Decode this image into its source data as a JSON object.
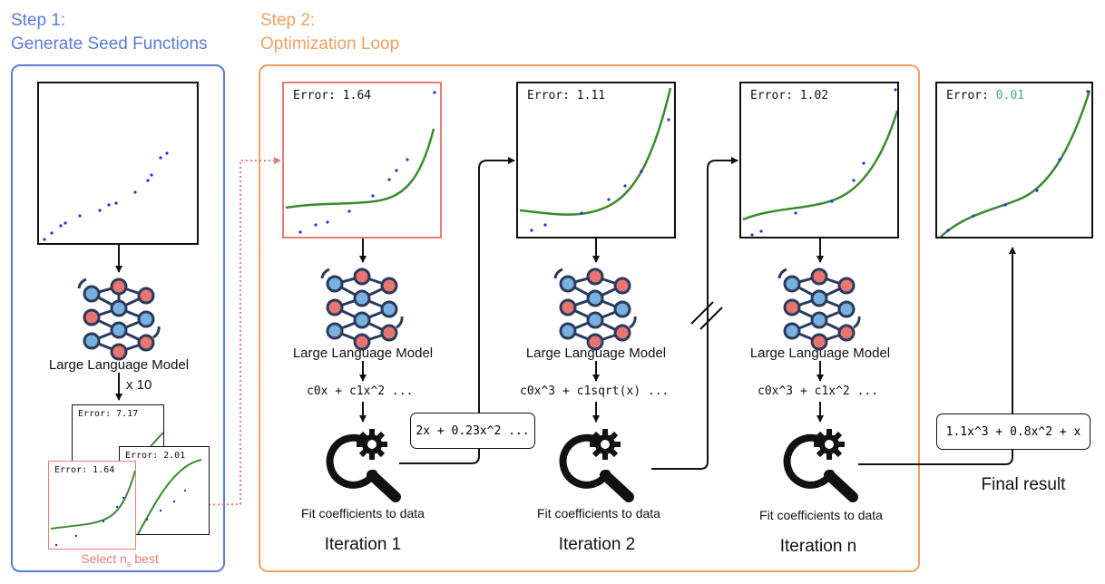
{
  "step1": {
    "title_line1": "Step 1:",
    "title_line2": "Generate Seed Functions",
    "color": "#5b7bdb"
  },
  "step2": {
    "title_line1": "Step 2:",
    "title_line2": "Optimization Loop",
    "color": "#f0a060"
  },
  "model_label": "Large Language Model",
  "times_label": "x 10",
  "select_label": "Select n",
  "select_sub": "s",
  "select_suffix": " best",
  "seed_plots": [
    {
      "error_label": "Error: 7.17"
    },
    {
      "error_label": "Error: 2.01"
    },
    {
      "error_label": "Error: 1.64"
    }
  ],
  "iterations": [
    {
      "error_label": "Error: 1.64",
      "function_text": "c0x + c1x^2 ...",
      "fit_label": "Fit coefficients to data",
      "iteration_label": "Iteration 1"
    },
    {
      "error_label": "Error: 1.11",
      "function_text": "c0x^3 + c1sqrt(x) ...",
      "fit_label": "Fit coefficients to data",
      "iteration_label": "Iteration 2"
    },
    {
      "error_label": "Error: 1.02",
      "function_text": "c0x^3 + c1x^2 ...",
      "fit_label": "Fit coefficients to data",
      "iteration_label": "Iteration n"
    }
  ],
  "fitted_expression": "2x + 0.23x^2 ...",
  "final": {
    "error_prefix": "Error: ",
    "error_value": "0.01",
    "expression": "1.1x^3 + 0.8x^2 + x",
    "label": "Final result"
  },
  "colors": {
    "curve": "#3a8a2e",
    "points": "#2233dd",
    "highlight": "#e87c76",
    "arrow": "#111111"
  }
}
